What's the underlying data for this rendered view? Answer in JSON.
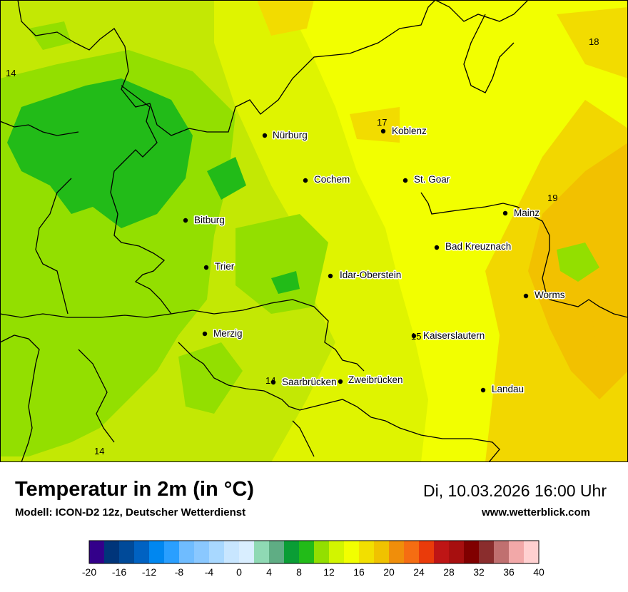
{
  "title": "Temperatur in 2m (in °C)",
  "subtitle": "Modell: ICON-D2 12z, Deutscher Wetterdienst",
  "datetime": "Di, 10.03.2026 16:00 Uhr",
  "website": "www.wetterblick.com",
  "cities": [
    "Nürburg",
    "Koblenz",
    "Cochem",
    "St. Goar",
    "Bitburg",
    "Mainz",
    "Bad Kreuznach",
    "Trier",
    "Idar-Oberstein",
    "Worms",
    "Merzig",
    "Kaiserslautern",
    "Saarbrücken",
    "Zweibrücken",
    "Landau"
  ],
  "value_labels": [
    "14",
    "17",
    "18",
    "19",
    "15",
    "14",
    "14"
  ],
  "legend": {
    "ticks": [
      "-20",
      "-16",
      "-12",
      "-8",
      "-4",
      "0",
      "4",
      "8",
      "12",
      "16",
      "20",
      "24",
      "28",
      "32",
      "36",
      "40"
    ],
    "colors": [
      "#33008a",
      "#00357a",
      "#004a99",
      "#0062c2",
      "#0087f0",
      "#2a9fff",
      "#6fbcff",
      "#8ac8ff",
      "#a8d8ff",
      "#c8e6ff",
      "#d9eeff",
      "#8fd9b4",
      "#5fad84",
      "#0a9d35",
      "#22bb18",
      "#93df00",
      "#d2f500",
      "#f2ff00",
      "#f2df00",
      "#f0c200",
      "#f08e0a",
      "#f56d12",
      "#ea3b0a",
      "#be1515",
      "#a70f0f",
      "#800000",
      "#8a2d2d",
      "#c07070",
      "#f2a8a8",
      "#ffd0d0"
    ]
  }
}
